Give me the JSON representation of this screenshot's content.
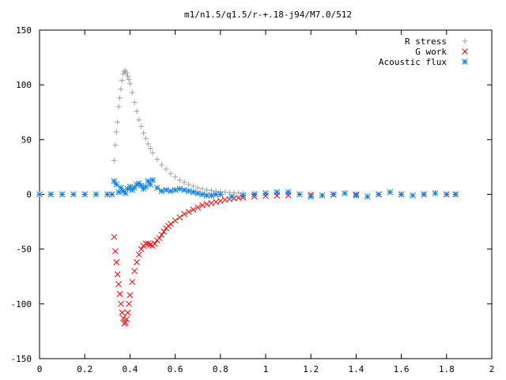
{
  "chart_data": {
    "type": "scatter",
    "title": "m1/n1.5/q1.5/r-+.18-j94/M7.0/512",
    "xlabel": "",
    "ylabel": "",
    "xlim": [
      0,
      2
    ],
    "ylim": [
      -150,
      150
    ],
    "xticks": [
      0,
      0.2,
      0.4,
      0.6,
      0.8,
      1,
      1.2,
      1.4,
      1.6,
      1.8,
      2
    ],
    "xtick_labels": [
      "0",
      "0.2",
      "0.4",
      "0.6",
      "0.8",
      "1",
      "1.2",
      "1.4",
      "1.6",
      "1.8",
      "2"
    ],
    "yticks": [
      -150,
      -100,
      -50,
      0,
      50,
      100,
      150
    ],
    "ytick_labels": [
      "-150",
      "-100",
      "-50",
      "0",
      "50",
      "100",
      "150"
    ],
    "grid": false,
    "legend_position": "top-right",
    "series": [
      {
        "name": "R stress",
        "marker": "+",
        "color": "#a0a0a0",
        "x": [
          0.0,
          0.1,
          0.2,
          0.3,
          0.33,
          0.335,
          0.34,
          0.345,
          0.35,
          0.355,
          0.36,
          0.365,
          0.37,
          0.375,
          0.38,
          0.385,
          0.39,
          0.395,
          0.4,
          0.41,
          0.42,
          0.43,
          0.44,
          0.45,
          0.46,
          0.47,
          0.48,
          0.49,
          0.5,
          0.52,
          0.54,
          0.56,
          0.58,
          0.6,
          0.62,
          0.64,
          0.66,
          0.68,
          0.7,
          0.72,
          0.74,
          0.76,
          0.78,
          0.8,
          0.82,
          0.84,
          0.86,
          0.88,
          0.9,
          0.95,
          1.0,
          1.05,
          1.1,
          1.2,
          1.3,
          1.4,
          1.5,
          1.6,
          1.7,
          1.8,
          1.84
        ],
        "y": [
          0,
          0,
          0,
          0,
          31,
          45,
          57,
          66,
          80,
          88,
          96,
          104,
          110,
          112,
          113,
          111,
          108,
          105,
          101,
          93,
          84,
          76,
          68,
          62,
          56,
          51,
          46,
          42,
          38,
          32,
          27,
          23,
          19,
          16,
          13,
          11,
          9,
          7.5,
          6,
          5,
          4,
          3.5,
          3,
          2.5,
          2,
          1.7,
          1.4,
          1.2,
          1,
          0.7,
          0.5,
          0.4,
          0.3,
          0.2,
          0.1,
          0.1,
          0,
          0,
          0,
          0,
          0
        ]
      },
      {
        "name": "G work",
        "marker": "x",
        "color": "#ff0000",
        "x": [
          0.33,
          0.335,
          0.34,
          0.345,
          0.35,
          0.355,
          0.36,
          0.365,
          0.37,
          0.375,
          0.38,
          0.385,
          0.39,
          0.395,
          0.4,
          0.41,
          0.42,
          0.43,
          0.44,
          0.45,
          0.46,
          0.47,
          0.48,
          0.49,
          0.5,
          0.51,
          0.52,
          0.53,
          0.54,
          0.55,
          0.56,
          0.57,
          0.58,
          0.6,
          0.62,
          0.64,
          0.66,
          0.68,
          0.7,
          0.72,
          0.74,
          0.76,
          0.78,
          0.8,
          0.82,
          0.84,
          0.86,
          0.88,
          0.9,
          0.95,
          1.0,
          1.05,
          1.1,
          1.2,
          1.3,
          1.4,
          1.5,
          1.6,
          1.7,
          1.8,
          1.84
        ],
        "y": [
          -39,
          -52,
          -62,
          -73,
          -82,
          -91,
          -100,
          -108,
          -113,
          -118,
          -117,
          -114,
          -108,
          -100,
          -92,
          -80,
          -70,
          -62,
          -55,
          -50,
          -47,
          -45,
          -45,
          -46,
          -47,
          -45,
          -42,
          -40,
          -37,
          -34,
          -31,
          -29,
          -27,
          -24,
          -21,
          -18,
          -16,
          -14,
          -12,
          -10,
          -9,
          -8,
          -7,
          -6,
          -5,
          -4.3,
          -3.7,
          -3.2,
          -2.8,
          -2,
          -1.5,
          -1.1,
          -0.8,
          -0.5,
          -0.3,
          -0.2,
          -0.1,
          0,
          0,
          0,
          0
        ]
      },
      {
        "name": "Acoustic flux",
        "marker": "*",
        "color": "#0f7fdf",
        "x": [
          0.0,
          0.05,
          0.1,
          0.15,
          0.2,
          0.25,
          0.3,
          0.32,
          0.33,
          0.34,
          0.35,
          0.36,
          0.37,
          0.38,
          0.39,
          0.4,
          0.41,
          0.42,
          0.43,
          0.44,
          0.45,
          0.46,
          0.47,
          0.48,
          0.49,
          0.5,
          0.52,
          0.54,
          0.56,
          0.58,
          0.6,
          0.62,
          0.64,
          0.66,
          0.68,
          0.7,
          0.72,
          0.74,
          0.76,
          0.78,
          0.8,
          0.85,
          0.9,
          0.95,
          1.0,
          1.05,
          1.1,
          1.15,
          1.2,
          1.25,
          1.3,
          1.35,
          1.4,
          1.45,
          1.5,
          1.55,
          1.6,
          1.65,
          1.7,
          1.75,
          1.8,
          1.84
        ],
        "y": [
          0,
          0,
          0,
          0,
          0,
          0,
          0,
          0,
          12,
          9,
          2,
          6,
          3,
          1,
          5,
          7,
          4,
          6,
          9,
          10,
          8,
          5,
          7,
          12,
          9,
          13,
          6,
          3,
          4,
          3,
          4,
          5,
          4,
          3,
          2,
          1,
          0,
          -1,
          -1,
          0,
          0,
          -2,
          -1,
          0,
          1,
          2,
          2,
          0,
          -2,
          -1,
          0,
          1,
          -1,
          -2,
          0,
          2,
          0,
          -1,
          0,
          1,
          0,
          0
        ]
      }
    ]
  }
}
